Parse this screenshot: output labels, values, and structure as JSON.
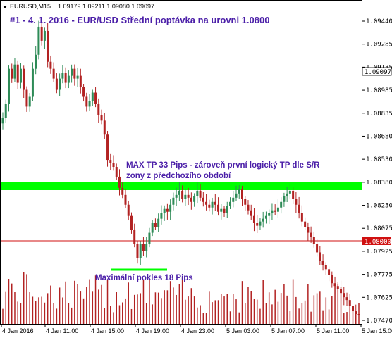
{
  "header": {
    "symbol": "EURUSD,M15",
    "ohlc": "1.09179 1.09211 1.09080 1.09097",
    "title": "#1 - 4. 1. 2016 - EUR/USD  Střední poptávka na urovni 1.0800"
  },
  "annotations": {
    "max_tp_line1": "MAX TP 33 Pips - zároveň první logický TP dle S/R",
    "max_tp_line2": "zony z předchozího období",
    "max_drop": "Maximální pokles 18 Pips"
  },
  "colors": {
    "bull": "#2e8b57",
    "bear": "#b22222",
    "volume": "#b22222",
    "zone": "#00ff00",
    "level_line": "#d01010",
    "annotation_text": "#4b1fa8"
  },
  "chart_data": {
    "type": "candlestick",
    "y_ticks": [
      "1.09440",
      "1.09285",
      "1.09135",
      "1.08985",
      "1.08835",
      "1.08680",
      "1.08530",
      "1.08380",
      "1.08230",
      "1.08075",
      "1.07925",
      "1.07775",
      "1.07625",
      "1.07470"
    ],
    "y_range": [
      1.0747,
      1.0959
    ],
    "x_ticks": [
      "4 Jan 2016",
      "4 Jan 11:00",
      "4 Jan 15:00",
      "4 Jan 19:00",
      "4 Jan 23:00",
      "5 Jan 03:00",
      "5 Jan 07:00",
      "5 Jan 11:00",
      "5 Jan 15:00"
    ],
    "current_price_label": "1.09097",
    "level_label": "1.08000",
    "level_price": 1.08,
    "zone_range": [
      1.0835,
      1.0839
    ],
    "min_line_price": 1.0787,
    "closes": [
      1.089,
      1.09,
      1.0925,
      1.0918,
      1.0928,
      1.0915,
      1.0925,
      1.091,
      1.0898,
      1.0905,
      1.0925,
      1.0935,
      1.0955,
      1.0945,
      1.0952,
      1.093,
      1.0925,
      1.0918,
      1.091,
      1.0918,
      1.0922,
      1.0915,
      1.092,
      1.0925,
      1.0918,
      1.092,
      1.0912,
      1.0905,
      1.0898,
      1.0902,
      1.0908,
      1.09,
      1.0892,
      1.0888,
      1.0878,
      1.086,
      1.0858,
      1.0855,
      1.0848,
      1.084,
      1.0835,
      1.0828,
      1.082,
      1.081,
      1.08,
      1.079,
      1.08,
      1.0795,
      1.08,
      1.0808,
      1.0815,
      1.0812,
      1.0818,
      1.0822,
      1.0825,
      1.0823,
      1.0828,
      1.0833,
      1.0835,
      1.0838,
      1.0832,
      1.0835,
      1.0833,
      1.083,
      1.0834,
      1.0838,
      1.0833,
      1.083,
      1.0828,
      1.0826,
      1.083,
      1.0828,
      1.0823,
      1.0825,
      1.0822,
      1.0827,
      1.083,
      1.0833,
      1.0836,
      1.0839,
      1.0832,
      1.0828,
      1.0824,
      1.082,
      1.0815,
      1.0813,
      1.0816,
      1.0818,
      1.082,
      1.0822,
      1.0824,
      1.0823,
      1.0826,
      1.083,
      1.0834,
      1.0836,
      1.0838,
      1.0832,
      1.0828,
      1.0822,
      1.0816,
      1.0812,
      1.0808,
      1.0805,
      1.08,
      1.0794,
      1.0788,
      1.0785,
      1.0782,
      1.0778,
      1.0772,
      1.077,
      1.0768,
      1.0765,
      1.0762,
      1.076,
      1.0756,
      1.0752,
      1.075,
      1.0749
    ]
  }
}
